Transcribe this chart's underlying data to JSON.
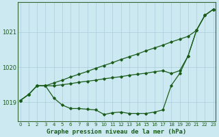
{
  "xlabel": "Graphe pression niveau de la mer (hPa)",
  "background_color": "#cce8f0",
  "grid_color": "#aaccdd",
  "line_color": "#1a5c1a",
  "spine_color": "#336633",
  "ylim": [
    1018.45,
    1021.85
  ],
  "xlim": [
    -0.3,
    23.3
  ],
  "yticks": [
    1019,
    1020,
    1021
  ],
  "xticks": [
    0,
    1,
    2,
    3,
    4,
    5,
    6,
    7,
    8,
    9,
    10,
    11,
    12,
    13,
    14,
    15,
    16,
    17,
    18,
    19,
    20,
    21,
    22,
    23
  ],
  "hours": [
    0,
    1,
    2,
    3,
    4,
    5,
    6,
    7,
    8,
    9,
    10,
    11,
    12,
    13,
    14,
    15,
    16,
    17,
    18,
    19,
    20,
    21,
    22,
    23
  ],
  "line_lower": [
    1019.05,
    1019.22,
    1019.47,
    1019.47,
    1019.12,
    1018.92,
    1018.82,
    1018.82,
    1018.8,
    1018.78,
    1018.65,
    1018.7,
    1018.72,
    1018.68,
    1018.68,
    1018.68,
    1018.72,
    1018.78,
    1019.48,
    1019.82,
    1020.32,
    1021.05,
    1021.48,
    1021.65
  ],
  "line_upper": [
    1019.05,
    1019.22,
    1019.47,
    1019.47,
    1019.55,
    1019.63,
    1019.72,
    1019.8,
    1019.88,
    1019.97,
    1020.05,
    1020.13,
    1020.22,
    1020.3,
    1020.38,
    1020.47,
    1020.55,
    1020.63,
    1020.72,
    1020.8,
    1020.88,
    1021.05,
    1021.48,
    1021.65
  ],
  "line_mid": [
    1019.05,
    1019.22,
    1019.47,
    1019.47,
    1019.47,
    1019.5,
    1019.53,
    1019.57,
    1019.6,
    1019.63,
    1019.67,
    1019.7,
    1019.73,
    1019.77,
    1019.8,
    1019.83,
    1019.87,
    1019.9,
    1019.82,
    1019.9,
    1020.32,
    1021.05,
    1021.48,
    1021.65
  ]
}
